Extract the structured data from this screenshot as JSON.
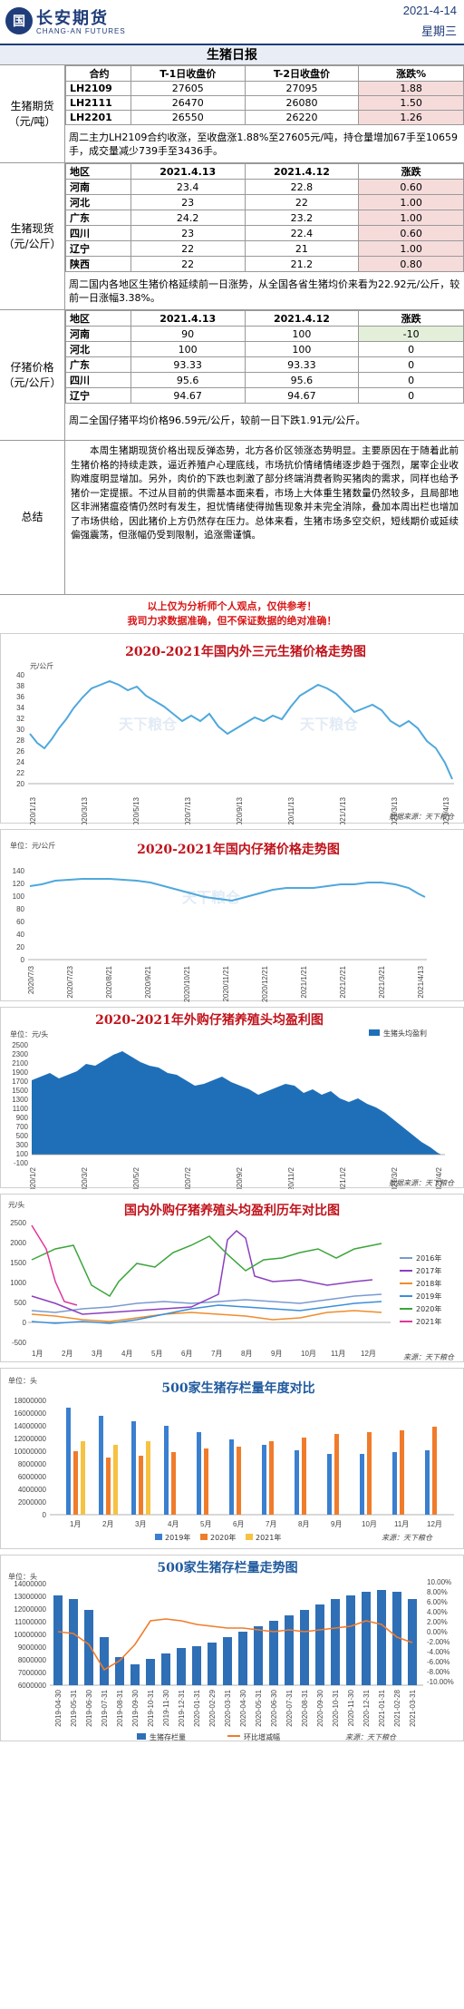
{
  "header": {
    "logo_mark": "国",
    "company_cn": "长安期货",
    "company_en": "CHANG-AN FUTURES",
    "date": "2021-4-14",
    "weekday": "星期三"
  },
  "report_title": "生猪日报",
  "futures": {
    "label": "生猪期货（元/吨）",
    "headers": [
      "合约",
      "T-1日收盘价",
      "T-2日收盘价",
      "涨跌%"
    ],
    "rows": [
      [
        "LH2109",
        "27605",
        "27095",
        "1.88"
      ],
      [
        "LH2111",
        "26470",
        "26080",
        "1.50"
      ],
      [
        "LH2201",
        "26550",
        "26220",
        "1.26"
      ]
    ],
    "note": "周二主力LH2109合约收涨，至收盘涨1.88%至27605元/吨，持仓量增加67手至10659手，成交量减少739手至3436手。"
  },
  "spot": {
    "label": "生猪现货（元/公斤）",
    "headers": [
      "地区",
      "2021.4.13",
      "2021.4.12",
      "涨跌"
    ],
    "rows": [
      [
        "河南",
        "23.4",
        "22.8",
        "0.60"
      ],
      [
        "河北",
        "23",
        "22",
        "1.00"
      ],
      [
        "广东",
        "24.2",
        "23.2",
        "1.00"
      ],
      [
        "四川",
        "23",
        "22.4",
        "0.60"
      ],
      [
        "辽宁",
        "22",
        "21",
        "1.00"
      ],
      [
        "陕西",
        "22",
        "21.2",
        "0.80"
      ]
    ],
    "note": "周二国内各地区生猪价格延续前一日涨势，从全国各省生猪均价来看为22.92元/公斤，较前一日涨幅3.38%。"
  },
  "piglet": {
    "label": "仔猪价格（元/公斤）",
    "headers": [
      "地区",
      "2021.4.13",
      "2021.4.12",
      "涨跌"
    ],
    "rows": [
      [
        "河南",
        "90",
        "100",
        "-10"
      ],
      [
        "河北",
        "100",
        "100",
        "0"
      ],
      [
        "广东",
        "93.33",
        "93.33",
        "0"
      ],
      [
        "四川",
        "95.6",
        "95.6",
        "0"
      ],
      [
        "辽宁",
        "94.67",
        "94.67",
        "0"
      ]
    ],
    "note": "周二全国仔猪平均价格96.59元/公斤，较前一日下跌1.91元/公斤。"
  },
  "summary": {
    "label": "总结",
    "text": "本周生猪期现货价格出现反弹态势，北方各价区领涨态势明显。主要原因在于随着此前生猪价格的持续走跌，逼近养殖户心理底线，市场抗价情绪情绪逐步趋于强烈，屠宰企业收购难度明显增加。另外，肉价的下跌也刺激了部分终端消费者购买猪肉的需求，同样也给予猪价一定提振。不过从目前的供需基本面来看，市场上大体重生猪数量仍然较多，且局部地区非洲猪瘟疫情仍然时有发生，担忧情绪使得抛售现象并未完全消除，叠加本周出栏也增加了市场供给，因此猪价上方仍然存在压力。总体来看，生猪市场多空交织，短线期价或延续偏强震荡，但涨幅仍受到限制，追涨需谨慎。"
  },
  "disclaimer": {
    "line1": "以上仅为分析师个人观点，仅供参考！",
    "line2": "我司力求数据准确，但不保证数据的绝对准确！"
  },
  "charts": [
    {
      "title": "2020-2021年国内外三元生猪价格走势图",
      "unit": "元/公斤",
      "source": "数据来源：天下粮仓",
      "watermark": "天下粮仓",
      "yticks": [
        "40",
        "38",
        "36",
        "34",
        "32",
        "30",
        "28",
        "26",
        "24",
        "22",
        "20"
      ],
      "xticks": [
        "2020/1/13",
        "2020/3/13",
        "2020/5/13",
        "2020/7/13",
        "2020/9/13",
        "2020/11/13",
        "2021/1/13",
        "2021/3/13",
        "2021/4/13"
      ],
      "line_color": "#4fa8dc"
    },
    {
      "title": "2020-2021年国内仔猪价格走势图",
      "unit": "单位：元/公斤",
      "watermark": "天下粮仓",
      "yticks": [
        "140",
        "120",
        "100",
        "80",
        "60",
        "40",
        "20",
        "0"
      ],
      "xticks": [
        "2020/7/3",
        "2020/7/23",
        "2020/8/21",
        "2020/9/21",
        "2020/10/21",
        "2020/11/21",
        "2020/12/21",
        "2021/1/21",
        "2021/2/21",
        "2021/3/21",
        "2021/4/13"
      ],
      "line_color": "#4fa8dc"
    },
    {
      "title": "2020-2021年外购仔猪养殖头均盈利图",
      "unit": "单位：元/头",
      "legend": "生猪头均盈利",
      "source": "数据来源：天下粮仓",
      "watermark": "天下粮仓",
      "yticks": [
        "2500",
        "2300",
        "2100",
        "1900",
        "1700",
        "1500",
        "1300",
        "1100",
        "900",
        "700",
        "500",
        "300",
        "100",
        "-100"
      ],
      "xticks": [
        "2020/1/2",
        "2020/3/2",
        "2020/5/2",
        "2020/7/2",
        "2020/9/2",
        "2020/11/2",
        "2021/1/2",
        "2021/3/2",
        "2021/4/2"
      ],
      "fill_color": "#1f6fb8"
    },
    {
      "title": "国内外购仔猪养殖头均盈利历年对比图",
      "unit": "元/头",
      "source": "来源：天下粮仓",
      "watermark": "天下粮仓",
      "yticks": [
        "2500",
        "2000",
        "1500",
        "1000",
        "500",
        "0",
        "-500"
      ],
      "xticks": [
        "1月",
        "2月",
        "3月",
        "4月",
        "5月",
        "6月",
        "7月",
        "8月",
        "9月",
        "10月",
        "11月",
        "12月"
      ],
      "legend": [
        {
          "name": "2016年",
          "color": "#7a9ad0"
        },
        {
          "name": "2017年",
          "color": "#8b3fbf"
        },
        {
          "name": "2018年",
          "color": "#f08c2b"
        },
        {
          "name": "2019年",
          "color": "#3a8fd8"
        },
        {
          "name": "2020年",
          "color": "#3aa53a"
        },
        {
          "name": "2021年",
          "color": "#e0369a"
        }
      ]
    },
    {
      "title": "500家生猪存栏量年度对比",
      "unit": "单位：头",
      "source": "来源：天下粮仓",
      "watermark": "天下粮仓",
      "yticks": [
        "18000000",
        "16000000",
        "14000000",
        "12000000",
        "10000000",
        "8000000",
        "6000000",
        "4000000",
        "2000000",
        "0"
      ],
      "xticks": [
        "1月",
        "2月",
        "3月",
        "4月",
        "5月",
        "6月",
        "7月",
        "8月",
        "9月",
        "10月",
        "11月",
        "12月"
      ],
      "series": [
        {
          "name": "2019年",
          "color": "#3a7fd0"
        },
        {
          "name": "2020年",
          "color": "#f07c2b"
        },
        {
          "name": "2021年",
          "color": "#f5c242"
        }
      ]
    },
    {
      "title": "500家生猪存栏量走势图",
      "unit": "单位：头",
      "source": "来源：天下粮仓",
      "watermark": "天下粮仓",
      "yticks": [
        "14000000",
        "13000000",
        "12000000",
        "11000000",
        "10000000",
        "9000000",
        "8000000",
        "7000000",
        "6000000"
      ],
      "y2ticks": [
        "10.00%",
        "8.00%",
        "6.00%",
        "4.00%",
        "2.00%",
        "0.00%",
        "-2.00%",
        "-4.00%",
        "-6.00%",
        "-8.00%",
        "-10.00%"
      ],
      "xticks": [
        "2019-04-30",
        "2019-05-31",
        "2019-06-30",
        "2019-07-31",
        "2019-08-31",
        "2019-09-30",
        "2019-10-31",
        "2019-11-30",
        "2019-12-31",
        "2020-01-31",
        "2020-02-29",
        "2020-03-31",
        "2020-04-30",
        "2020-05-31",
        "2020-06-30",
        "2020-07-31",
        "2020-08-31",
        "2020-09-30",
        "2020-10-31",
        "2020-11-30",
        "2020-12-31",
        "2021-01-31",
        "2021-02-28",
        "2021-03-31"
      ],
      "legend": [
        {
          "name": "生猪存栏量",
          "color": "#2f6fb6"
        },
        {
          "name": "环比增减幅",
          "color": "#f07c2b"
        }
      ]
    }
  ]
}
